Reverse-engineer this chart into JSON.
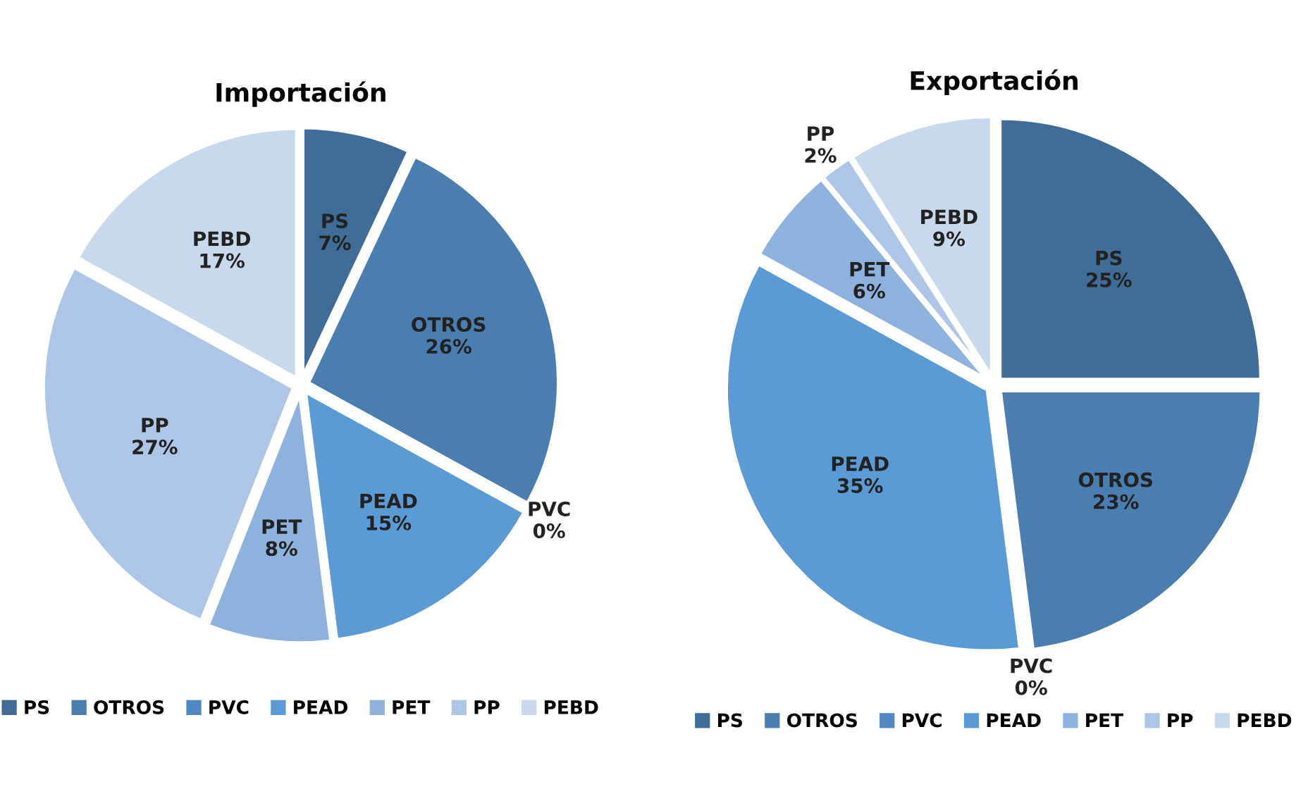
{
  "chart_data": [
    {
      "type": "pie",
      "title": "Importación",
      "categories": [
        "PS",
        "OTROS",
        "PVC",
        "PEAD",
        "PET",
        "PP",
        "PEBD"
      ],
      "values": [
        7,
        26,
        0,
        15,
        8,
        27,
        17
      ],
      "value_labels": [
        "7%",
        "26%",
        "0%",
        "15%",
        "8%",
        "27%",
        "17%"
      ],
      "colors": [
        "#3f6d98",
        "#4a7eb0",
        "#5088c4",
        "#5b9bd5",
        "#8eb2de",
        "#adc6e7",
        "#c8d8ed"
      ],
      "legend": "bottom"
    },
    {
      "type": "pie",
      "title": "Exportación",
      "categories": [
        "PS",
        "OTROS",
        "PVC",
        "PEAD",
        "PET",
        "PP",
        "PEBD"
      ],
      "values": [
        25,
        23,
        0,
        35,
        6,
        2,
        9
      ],
      "value_labels": [
        "25%",
        "23%",
        "0%",
        "35%",
        "6%",
        "2%",
        "9%"
      ],
      "colors": [
        "#3f6d98",
        "#4a7eb0",
        "#5088c4",
        "#5b9bd5",
        "#8eb2de",
        "#adc6e7",
        "#c8d8ed"
      ],
      "legend": "bottom"
    }
  ]
}
